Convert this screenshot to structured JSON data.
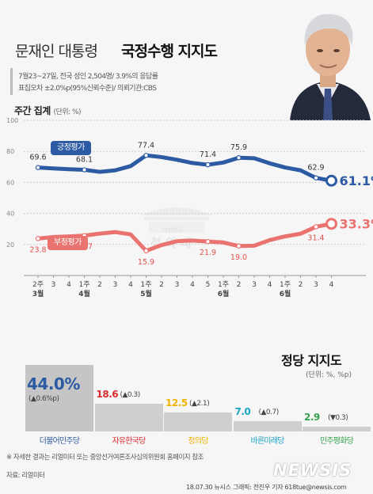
{
  "header": {
    "title_plain": "문재인 대통령",
    "title_bold": "국정수행 지지도",
    "meta_line1": "7월23~27일, 전국 성인 2,504명/ 3.9%의 응답률",
    "meta_line2": "표집오차 ±2.0%p(95%신뢰수준)/ 의뢰기관:CBS"
  },
  "weekly": {
    "title": "주간 집계",
    "unit": "(단위: %)"
  },
  "chart_data": [
    {
      "type": "line",
      "title": "주간 집계",
      "unit": "%",
      "ylim": [
        0,
        100
      ],
      "yticks": [
        20,
        40,
        60,
        80,
        100
      ],
      "grid": true,
      "x_week_labels": [
        "2주",
        "3",
        "4",
        "1주",
        "2",
        "3",
        "4",
        "1주",
        "2",
        "3",
        "4",
        "5",
        "1주",
        "2",
        "3",
        "4",
        "1주",
        "2",
        "3",
        "4"
      ],
      "x_month_labels": [
        {
          "at": 0,
          "label": "3월"
        },
        {
          "at": 3,
          "label": "4월"
        },
        {
          "at": 7,
          "label": "5월"
        },
        {
          "at": 12,
          "label": "6월"
        },
        {
          "at": 16,
          "label": "6월"
        }
      ],
      "series": [
        {
          "name": "긍정평가",
          "color": "#2c5aa3",
          "values": [
            69.6,
            69.0,
            68.5,
            68.1,
            66.8,
            67.8,
            70.5,
            77.4,
            76.3,
            74.6,
            72.5,
            71.4,
            72.8,
            75.9,
            75.6,
            72.3,
            69.6,
            67.8,
            62.9,
            61.1
          ],
          "labeled_points": [
            {
              "i": 0,
              "label": "69.6"
            },
            {
              "i": 3,
              "label": "68.1"
            },
            {
              "i": 7,
              "label": "77.4"
            },
            {
              "i": 11,
              "label": "71.4"
            },
            {
              "i": 13,
              "label": "75.9"
            },
            {
              "i": 18,
              "label": "62.9"
            }
          ],
          "last_label": "61.1%"
        },
        {
          "name": "부정평가",
          "color": "#ea7370",
          "values": [
            23.8,
            24.8,
            25.2,
            25.7,
            27.0,
            28.0,
            26.5,
            15.9,
            19.6,
            22.1,
            22.5,
            21.9,
            21.3,
            19.0,
            19.2,
            22.8,
            25.2,
            26.9,
            31.4,
            33.3
          ],
          "labeled_points": [
            {
              "i": 0,
              "label": "23.8"
            },
            {
              "i": 3,
              "label": "25.7"
            },
            {
              "i": 7,
              "label": "15.9"
            },
            {
              "i": 11,
              "label": "21.9"
            },
            {
              "i": 13,
              "label": "19.0"
            },
            {
              "i": 18,
              "label": "31.4"
            }
          ],
          "last_label": "33.3%"
        }
      ]
    },
    {
      "type": "bar",
      "title": "정당 지지도",
      "unit": "(단위: %, %p)",
      "categories": [
        "더불어민주당",
        "자유한국당",
        "정의당",
        "바른미래당",
        "민주평화당"
      ],
      "values": [
        44.0,
        18.6,
        12.5,
        7.0,
        2.9
      ],
      "value_labels": [
        "44.0%",
        "18.6",
        "12.5",
        "7.0",
        "2.9"
      ],
      "changes": [
        "(▲0.6%p)",
        "(▲0.3)",
        "(▲2.1)",
        "(▲0.7)",
        "(▼0.3)"
      ],
      "colors": [
        "#2c5aa3",
        "#d92b2f",
        "#f0b400",
        "#1ba5c6",
        "#35a24c"
      ]
    }
  ],
  "party": {
    "title": "정당 지지도",
    "unit": "(단위: %, %p)"
  },
  "footer": {
    "note": "※ 자세한 결과는 리얼미터 또는 중앙선거여론조사심의위원회 홈페이지 참조",
    "source": "자료: 리얼미터",
    "credit": "18.07.30 뉴시스 그래픽: 전진우 기자 618tue@newsis.com",
    "logo": "NEWSIS"
  },
  "watermark": {
    "small": "대한민국",
    "large": "청 와 대"
  }
}
